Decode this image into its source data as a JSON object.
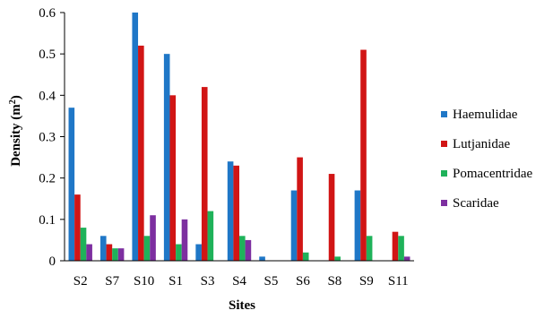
{
  "chart_data": {
    "type": "bar",
    "title": "",
    "xlabel": "Sites",
    "ylabel": "Density (m²)",
    "ylabel_base": "Density (m",
    "ylabel_sup": "2",
    "ylabel_close": ")",
    "ylim": [
      0,
      0.6
    ],
    "yticks": [
      0,
      0.1,
      0.2,
      0.3,
      0.4,
      0.5,
      0.6
    ],
    "ytick_labels": [
      "0",
      "0.1",
      "0.2",
      "0.3",
      "0.4",
      "0.5",
      "0.6"
    ],
    "grid": false,
    "legend_position": "right",
    "categories": [
      "S2",
      "S7",
      "S10",
      "S1",
      "S3",
      "S4",
      "S5",
      "S6",
      "S8",
      "S9",
      "S11"
    ],
    "series": [
      {
        "name": "Haemulidae",
        "color": "#1f77c7",
        "values": [
          0.37,
          0.06,
          0.6,
          0.5,
          0.04,
          0.24,
          0.01,
          0.17,
          0,
          0.17,
          0
        ]
      },
      {
        "name": "Lutjanidae",
        "color": "#d11515",
        "values": [
          0.16,
          0.04,
          0.52,
          0.4,
          0.42,
          0.23,
          0,
          0.25,
          0.21,
          0.51,
          0.07
        ]
      },
      {
        "name": "Pomacentridae",
        "color": "#1fb25a",
        "values": [
          0.08,
          0.03,
          0.06,
          0.04,
          0.12,
          0.06,
          0,
          0.02,
          0.01,
          0.06,
          0.06
        ]
      },
      {
        "name": "Scaridae",
        "color": "#7d2fa0",
        "values": [
          0.04,
          0.03,
          0.11,
          0.1,
          0,
          0.05,
          0,
          0,
          0,
          0,
          0.01
        ]
      }
    ]
  }
}
